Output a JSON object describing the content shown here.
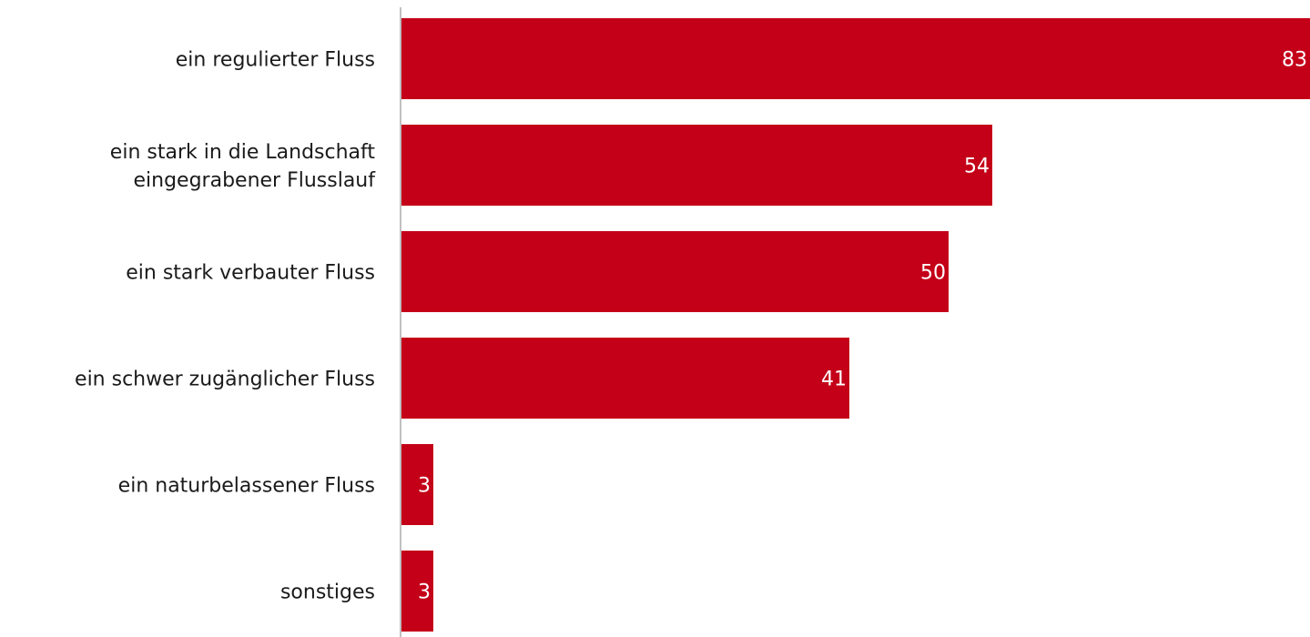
{
  "chart_data": {
    "type": "bar",
    "orientation": "horizontal",
    "categories": [
      [
        "ein regulierter Fluss"
      ],
      [
        "ein stark in die Landschaft",
        "eingegrabener Flusslauf"
      ],
      [
        "ein stark verbauter Fluss"
      ],
      [
        "ein schwer zugänglicher Fluss"
      ],
      [
        "ein naturbelassener Fluss"
      ],
      [
        "sonstiges"
      ]
    ],
    "values": [
      83,
      54,
      50,
      41,
      3,
      3
    ],
    "value_labels": [
      "83",
      "54",
      "50",
      "41",
      "3",
      "3"
    ],
    "xlim": [
      0,
      83
    ],
    "grid": false,
    "legend": "none",
    "colors": {
      "bar": "#c40018",
      "axis": "#c0c0c0",
      "label": "#1a1a1a",
      "value_label": "#ffffff"
    }
  }
}
